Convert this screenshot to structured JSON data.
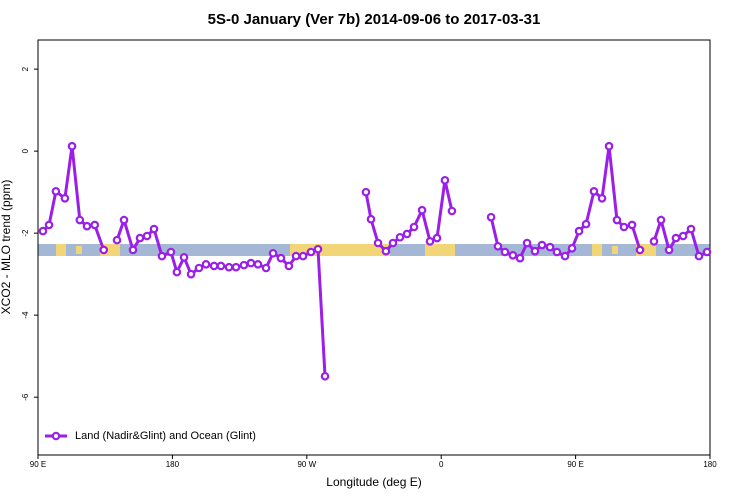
{
  "chart_data": {
    "type": "line",
    "title": "5S-0 January (Ver 7b)   2014-09-06 to 2017-03-31",
    "x_label": "Longitude (deg E)",
    "y_label": "XCO2 - MLO trend (ppm)",
    "xlim": [
      90,
      540
    ],
    "xticks": [
      {
        "value": 90,
        "label": "90 E"
      },
      {
        "value": 180,
        "label": "180"
      },
      {
        "value": 270,
        "label": "90 W"
      },
      {
        "value": 360,
        "label": "0"
      },
      {
        "value": 450,
        "label": "90 E"
      },
      {
        "value": 540,
        "label": "180"
      }
    ],
    "ylim": [
      -7.41,
      2.71
    ],
    "yticks": [
      2,
      0,
      -2,
      -4,
      -6
    ],
    "legend": "bottom-left",
    "series": [
      {
        "name": "Land (Nadir&Glint) and Ocean (Glint)",
        "color": "#9b1fe8",
        "x": [
          93.3,
          97.4,
          102,
          108,
          112.8,
          118,
          122.8,
          128,
          134,
          null,
          142.9,
          147.6,
          153.6,
          158.3,
          163,
          167.7,
          173,
          179,
          183,
          187.8,
          192.5,
          197.8,
          202.5,
          207.9,
          212.5,
          217.9,
          222.6,
          227.9,
          232.6,
          237.3,
          242.7,
          247.4,
          252.7,
          258,
          262.8,
          267.5,
          272.8,
          277.5,
          282.2,
          null,
          309.6,
          313,
          317.7,
          323,
          327.7,
          332.4,
          337.1,
          341.8,
          347.2,
          352.5,
          357.2,
          362.5,
          367.2,
          null,
          393.4,
          398,
          402.7,
          408,
          412.8,
          417.5,
          422.8,
          427.5,
          432.9,
          437.5,
          442.9,
          447.6,
          452.3,
          457,
          462.3,
          467.7,
          472.4,
          477.7,
          482.4,
          487.8,
          493.1,
          null,
          502.5,
          507.2,
          512.6,
          517.2,
          522,
          527.3,
          532.6,
          538
        ],
        "values": [
          -1.95,
          -1.8,
          -0.98,
          -1.15,
          0.12,
          -1.68,
          -1.83,
          -1.8,
          -2.41,
          null,
          -2.17,
          -1.68,
          -2.41,
          -2.12,
          -2.07,
          -1.9,
          -2.56,
          -2.46,
          -2.95,
          -2.59,
          -3.0,
          -2.85,
          -2.76,
          -2.8,
          -2.8,
          -2.83,
          -2.83,
          -2.78,
          -2.73,
          -2.76,
          -2.85,
          -2.49,
          -2.61,
          -2.8,
          -2.56,
          -2.56,
          -2.46,
          -2.39,
          -5.49,
          null,
          -1.0,
          -1.66,
          -2.24,
          -2.44,
          -2.24,
          -2.1,
          -2.02,
          -1.85,
          -1.44,
          -2.2,
          -2.12,
          -0.71,
          -1.46,
          null,
          -1.61,
          -2.32,
          -2.46,
          -2.54,
          -2.61,
          -2.24,
          -2.44,
          -2.29,
          -2.34,
          -2.46,
          -2.56,
          -2.37,
          -1.95,
          -1.78,
          -0.98,
          -1.15,
          0.12,
          -1.68,
          -1.85,
          -1.8,
          -2.41,
          null,
          -2.2,
          -1.68,
          -2.41,
          -2.12,
          -2.07,
          -1.9,
          -2.56,
          -2.46
        ]
      }
    ]
  }
}
